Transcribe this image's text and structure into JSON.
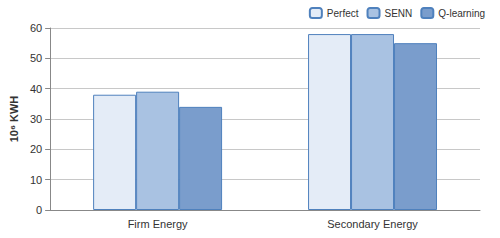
{
  "chart_data": {
    "type": "bar",
    "y_label": "10⁶ KWH",
    "categories": [
      "Firm Energy",
      "Secondary Energy"
    ],
    "series": [
      {
        "name": "Perfect",
        "color": "#e4ecf7",
        "values": [
          38,
          58
        ]
      },
      {
        "name": "SENN",
        "color": "#a9c2e2",
        "values": [
          39,
          58
        ]
      },
      {
        "name": "Q-learning",
        "color": "#7a9dcc",
        "values": [
          34,
          55
        ]
      }
    ],
    "ylim": [
      0,
      60
    ],
    "yticks": [
      0,
      10,
      20,
      30,
      40,
      50,
      60
    ],
    "grid": true,
    "legend": "top-right"
  }
}
